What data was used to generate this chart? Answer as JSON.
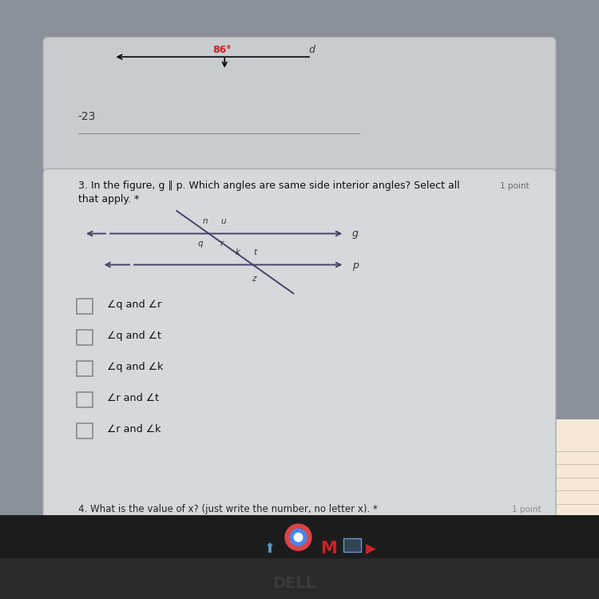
{
  "bg_color": "#8a9099",
  "top_card_color": "#c8ccd0",
  "main_card_color": "#d5d9dc",
  "question_line1": "3. In the figure, g ‖ p. Which angles are same side interior angles? Select all",
  "point_text": "1 point",
  "question_line2": "that apply. *",
  "options": [
    "∠q and ∠r",
    "∠q and ∠t",
    "∠q and ∠k",
    "∠r and ∠t",
    "∠r and ∠k"
  ],
  "footer_text": "4. What is the value of x? (just write the number, no letter x). *",
  "footer_point": "1 point",
  "top_text_23": "-23",
  "top_label_86": "86°",
  "top_label_d": "d",
  "taskbar_color": "#1c1c1c",
  "bezel_color": "#2a2a2a",
  "dell_color": "#3a3a3a"
}
